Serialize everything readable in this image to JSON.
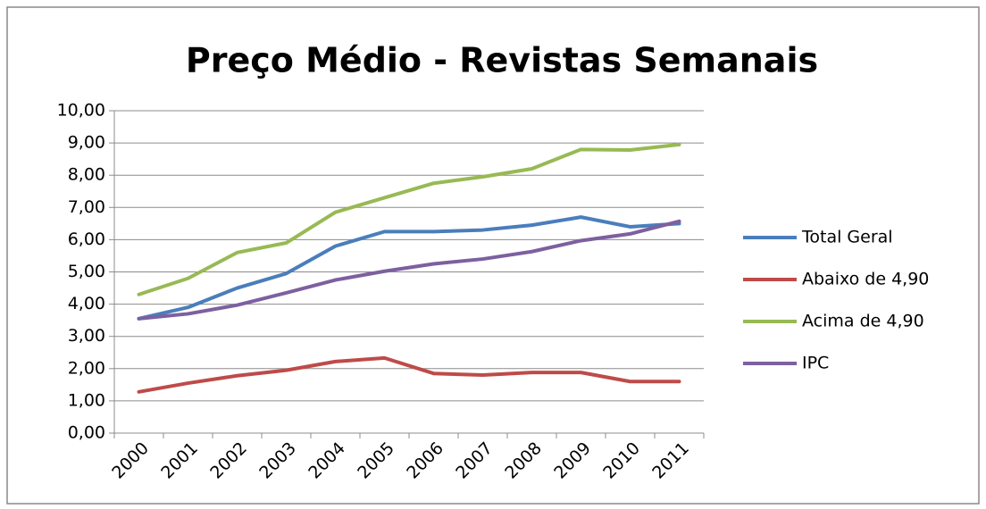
{
  "chart_data": {
    "type": "line",
    "title": "Preço Médio - Revistas Semanais",
    "categories": [
      "2000",
      "2001",
      "2002",
      "2003",
      "2004",
      "2005",
      "2006",
      "2007",
      "2008",
      "2009",
      "2010",
      "2011"
    ],
    "series": [
      {
        "name": "Total Geral",
        "color": "#4a7ebb",
        "values": [
          3.55,
          3.9,
          4.5,
          4.95,
          5.8,
          6.25,
          6.25,
          6.3,
          6.45,
          6.7,
          6.4,
          6.5
        ]
      },
      {
        "name": "Abaixo de 4,90",
        "color": "#be4b48",
        "values": [
          1.28,
          1.55,
          1.78,
          1.95,
          2.22,
          2.33,
          1.85,
          1.8,
          1.88,
          1.88,
          1.6,
          1.6
        ]
      },
      {
        "name": "Acima de 4,90",
        "color": "#98b954",
        "values": [
          4.3,
          4.8,
          5.6,
          5.9,
          6.85,
          7.3,
          7.75,
          7.95,
          8.2,
          8.8,
          8.78,
          8.95
        ]
      },
      {
        "name": "IPC",
        "color": "#7d60a0",
        "values": [
          3.55,
          3.7,
          3.97,
          4.35,
          4.75,
          5.02,
          5.25,
          5.4,
          5.63,
          5.97,
          6.18,
          6.57
        ]
      }
    ],
    "ylim": [
      0,
      10
    ],
    "yticks": [
      {
        "value": 0,
        "label": "0,00"
      },
      {
        "value": 1,
        "label": "1,00"
      },
      {
        "value": 2,
        "label": "2,00"
      },
      {
        "value": 3,
        "label": "3,00"
      },
      {
        "value": 4,
        "label": "4,00"
      },
      {
        "value": 5,
        "label": "5,00"
      },
      {
        "value": 6,
        "label": "6,00"
      },
      {
        "value": 7,
        "label": "7,00"
      },
      {
        "value": 8,
        "label": "8,00"
      },
      {
        "value": 9,
        "label": "9,00"
      },
      {
        "value": 10,
        "label": "10,00"
      }
    ],
    "grid": true,
    "legend": "right"
  }
}
